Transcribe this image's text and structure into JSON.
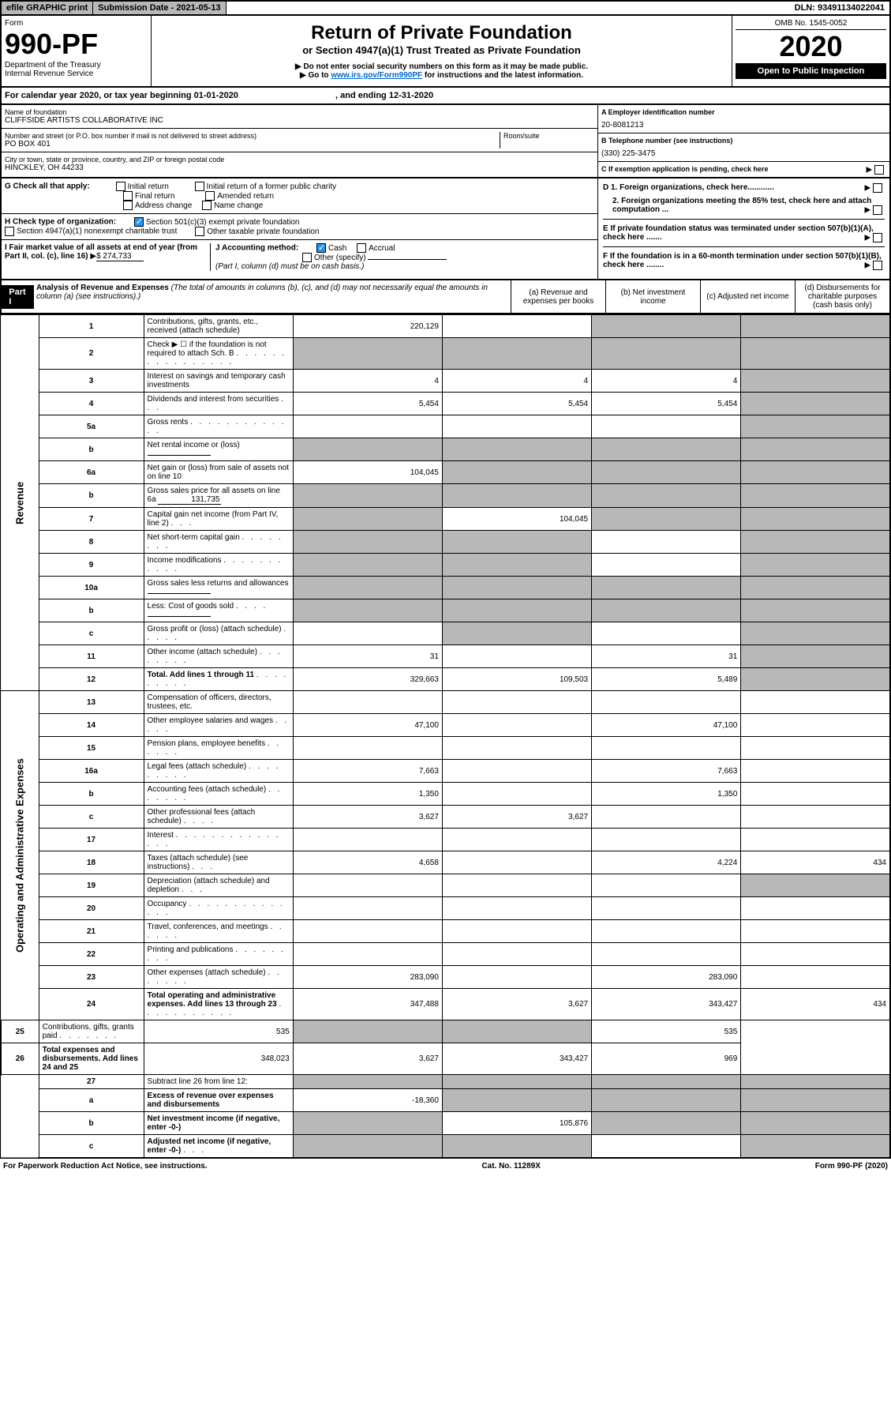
{
  "top": {
    "efile": "efile GRAPHIC print",
    "subdate_lbl": "Submission Date - 2021-05-13",
    "dln": "DLN: 93491134022041"
  },
  "hdr": {
    "form": "Form",
    "formno": "990-PF",
    "dept": "Department of the Treasury",
    "irs": "Internal Revenue Service",
    "title": "Return of Private Foundation",
    "sub": "or Section 4947(a)(1) Trust Treated as Private Foundation",
    "warn1": "▶ Do not enter social security numbers on this form as it may be made public.",
    "warn2": "▶ Go to ",
    "link": "www.irs.gov/Form990PF",
    "warn3": " for instructions and the latest information.",
    "omb": "OMB No. 1545-0052",
    "year": "2020",
    "open": "Open to Public Inspection"
  },
  "cal": {
    "pre": "For calendar year 2020, or tax year beginning ",
    "begin": "01-01-2020",
    "mid": ", and ending ",
    "end": "12-31-2020"
  },
  "id": {
    "name_lbl": "Name of foundation",
    "name": "CLIFFSIDE ARTISTS COLLABORATIVE INC",
    "addr_lbl": "Number and street (or P.O. box number if mail is not delivered to street address)",
    "addr": "PO BOX 401",
    "room_lbl": "Room/suite",
    "city_lbl": "City or town, state or province, country, and ZIP or foreign postal code",
    "city": "HINCKLEY, OH  44233",
    "a_lbl": "A Employer identification number",
    "ein": "20-8081213",
    "b_lbl": "B Telephone number (see instructions)",
    "phone": "(330) 225-3475",
    "c_lbl": "C If exemption application is pending, check here"
  },
  "g": {
    "lbl": "G Check all that apply:",
    "o1": "Initial return",
    "o2": "Final return",
    "o3": "Address change",
    "o4": "Initial return of a former public charity",
    "o5": "Amended return",
    "o6": "Name change"
  },
  "h": {
    "lbl": "H Check type of organization:",
    "o1": "Section 501(c)(3) exempt private foundation",
    "o2": "Section 4947(a)(1) nonexempt charitable trust",
    "o3": "Other taxable private foundation"
  },
  "i": {
    "lbl": "I Fair market value of all assets at end of year (from Part II, col. (c), line 16)",
    "val": "$  274,733"
  },
  "j": {
    "lbl": "J Accounting method:",
    "cash": "Cash",
    "accr": "Accrual",
    "oth": "Other (specify)",
    "note": "(Part I, column (d) must be on cash basis.)"
  },
  "def": {
    "d1": "D 1. Foreign organizations, check here............",
    "d2": "2. Foreign organizations meeting the 85% test, check here and attach computation ...",
    "e": "E  If private foundation status was terminated under section 507(b)(1)(A), check here .......",
    "f": "F  If the foundation is in a 60-month termination under section 507(b)(1)(B), check here ........"
  },
  "p1": {
    "part": "Part I",
    "title": "Analysis of Revenue and Expenses",
    "note": "(The total of amounts in columns (b), (c), and (d) may not necessarily equal the amounts in column (a) (see instructions).)",
    "ca": "(a)   Revenue and expenses per books",
    "cb": "(b)  Net investment income",
    "cc": "(c)  Adjusted net income",
    "cd": "(d)  Disbursements for charitable purposes (cash basis only)"
  },
  "sides": {
    "rev": "Revenue",
    "exp": "Operating and Administrative Expenses"
  },
  "rows": [
    {
      "n": "1",
      "d": "Contributions, gifts, grants, etc., received (attach schedule)",
      "a": "220,129",
      "b": "",
      "c": "",
      "cg": true,
      "dg": true
    },
    {
      "n": "2",
      "d": "Check ▶ ☐ if the foundation is not required to attach Sch. B",
      "a": "",
      "b": "",
      "c": "",
      "ag": true,
      "bg": true,
      "cg": true,
      "dg": true,
      "dots": ". . . . . . . . . . . . . . . ."
    },
    {
      "n": "3",
      "d": "Interest on savings and temporary cash investments",
      "a": "4",
      "b": "4",
      "c": "4",
      "dg": true
    },
    {
      "n": "4",
      "d": "Dividends and interest from securities",
      "a": "5,454",
      "b": "5,454",
      "c": "5,454",
      "dg": true,
      "dots": ". . ."
    },
    {
      "n": "5a",
      "d": "Gross rents",
      "a": "",
      "b": "",
      "c": "",
      "dg": true,
      "dots": ". . . . . . . . . . . . ."
    },
    {
      "n": "b",
      "d": "Net rental income or (loss)",
      "a": "",
      "b": "",
      "c": "",
      "ag": true,
      "bg": true,
      "cg": true,
      "dg": true,
      "inline": true
    },
    {
      "n": "6a",
      "d": "Net gain or (loss) from sale of assets not on line 10",
      "a": "104,045",
      "b": "",
      "c": "",
      "bg": true,
      "cg": true,
      "dg": true
    },
    {
      "n": "b",
      "d": "Gross sales price for all assets on line 6a",
      "a": "",
      "b": "",
      "c": "",
      "ag": true,
      "bg": true,
      "cg": true,
      "dg": true,
      "inline": true,
      "ival": "131,735"
    },
    {
      "n": "7",
      "d": "Capital gain net income (from Part IV, line 2)",
      "a": "",
      "b": "104,045",
      "c": "",
      "ag": true,
      "cg": true,
      "dg": true,
      "dots": ". . ."
    },
    {
      "n": "8",
      "d": "Net short-term capital gain",
      "a": "",
      "b": "",
      "c": "",
      "ag": true,
      "bg": true,
      "dg": true,
      "dots": ". . . . . . . ."
    },
    {
      "n": "9",
      "d": "Income modifications",
      "a": "",
      "b": "",
      "c": "",
      "ag": true,
      "bg": true,
      "dg": true,
      "dots": ". . . . . . . . . . ."
    },
    {
      "n": "10a",
      "d": "Gross sales less returns and allowances",
      "a": "",
      "b": "",
      "c": "",
      "ag": true,
      "bg": true,
      "cg": true,
      "dg": true,
      "inline": true
    },
    {
      "n": "b",
      "d": "Less: Cost of goods sold",
      "a": "",
      "b": "",
      "c": "",
      "ag": true,
      "bg": true,
      "cg": true,
      "dg": true,
      "inline": true,
      "dots": ". . . ."
    },
    {
      "n": "c",
      "d": "Gross profit or (loss) (attach schedule)",
      "a": "",
      "b": "",
      "c": "",
      "bg": true,
      "dg": true,
      "dots": ". . . . ."
    },
    {
      "n": "11",
      "d": "Other income (attach schedule)",
      "a": "31",
      "b": "",
      "c": "31",
      "dg": true,
      "dots": ". . . . . . . ."
    },
    {
      "n": "12",
      "d": "Total. Add lines 1 through 11",
      "a": "329,663",
      "b": "109,503",
      "c": "5,489",
      "dg": true,
      "bold": true,
      "dots": ". . . . . . . . ."
    },
    {
      "n": "13",
      "d": "Compensation of officers, directors, trustees, etc.",
      "a": "",
      "b": "",
      "c": "",
      "sec": "exp"
    },
    {
      "n": "14",
      "d": "Other employee salaries and wages",
      "a": "47,100",
      "b": "",
      "c": "47,100",
      "dots": ". . . . ."
    },
    {
      "n": "15",
      "d": "Pension plans, employee benefits",
      "a": "",
      "b": "",
      "c": "",
      "dots": ". . . . . ."
    },
    {
      "n": "16a",
      "d": "Legal fees (attach schedule)",
      "a": "7,663",
      "b": "",
      "c": "7,663",
      "dots": ". . . . . . . . ."
    },
    {
      "n": "b",
      "d": "Accounting fees (attach schedule)",
      "a": "1,350",
      "b": "",
      "c": "1,350",
      "dots": ". . . . . . ."
    },
    {
      "n": "c",
      "d": "Other professional fees (attach schedule)",
      "a": "3,627",
      "b": "3,627",
      "c": "",
      "dots": ". . . ."
    },
    {
      "n": "17",
      "d": "Interest",
      "a": "",
      "b": "",
      "c": "",
      "dots": ". . . . . . . . . . . . . . ."
    },
    {
      "n": "18",
      "d": "Taxes (attach schedule) (see instructions)",
      "a": "4,658",
      "b": "",
      "c": "4,224",
      "dd": "434",
      "dots": ". . ."
    },
    {
      "n": "19",
      "d": "Depreciation (attach schedule) and depletion",
      "a": "",
      "b": "",
      "c": "",
      "dg": true,
      "dots": ". . ."
    },
    {
      "n": "20",
      "d": "Occupancy",
      "a": "",
      "b": "",
      "c": "",
      "dots": ". . . . . . . . . . . . . ."
    },
    {
      "n": "21",
      "d": "Travel, conferences, and meetings",
      "a": "",
      "b": "",
      "c": "",
      "dots": ". . . . . ."
    },
    {
      "n": "22",
      "d": "Printing and publications",
      "a": "",
      "b": "",
      "c": "",
      "dots": ". . . . . . . . ."
    },
    {
      "n": "23",
      "d": "Other expenses (attach schedule)",
      "a": "283,090",
      "b": "",
      "c": "283,090",
      "dots": ". . . . . . ."
    },
    {
      "n": "24",
      "d": "Total operating and administrative expenses. Add lines 13 through 23",
      "a": "347,488",
      "b": "3,627",
      "c": "343,427",
      "dd": "434",
      "bold": true,
      "dots": ". . . . . . . . . . ."
    },
    {
      "n": "25",
      "d": "Contributions, gifts, grants paid",
      "a": "535",
      "b": "",
      "c": "",
      "bg": true,
      "cg": true,
      "dd": "535",
      "dots": ". . . . . . ."
    },
    {
      "n": "26",
      "d": "Total expenses and disbursements. Add lines 24 and 25",
      "a": "348,023",
      "b": "3,627",
      "c": "343,427",
      "dd": "969",
      "bold": true
    },
    {
      "n": "27",
      "d": "Subtract line 26 from line 12:",
      "a": "",
      "b": "",
      "c": "",
      "ag": true,
      "bg": true,
      "cg": true,
      "dg": true,
      "sec": "end"
    },
    {
      "n": "a",
      "d": "Excess of revenue over expenses and disbursements",
      "a": "-18,360",
      "b": "",
      "c": "",
      "bg": true,
      "cg": true,
      "dg": true,
      "bold": true
    },
    {
      "n": "b",
      "d": "Net investment income (if negative, enter -0-)",
      "a": "",
      "b": "105,876",
      "c": "",
      "ag": true,
      "cg": true,
      "dg": true,
      "bold": true
    },
    {
      "n": "c",
      "d": "Adjusted net income (if negative, enter -0-)",
      "a": "",
      "b": "",
      "c": "",
      "ag": true,
      "bg": true,
      "dg": true,
      "bold": true,
      "dots": ". . ."
    }
  ],
  "foot": {
    "l": "For Paperwork Reduction Act Notice, see instructions.",
    "c": "Cat. No. 11289X",
    "r": "Form 990-PF (2020)"
  }
}
